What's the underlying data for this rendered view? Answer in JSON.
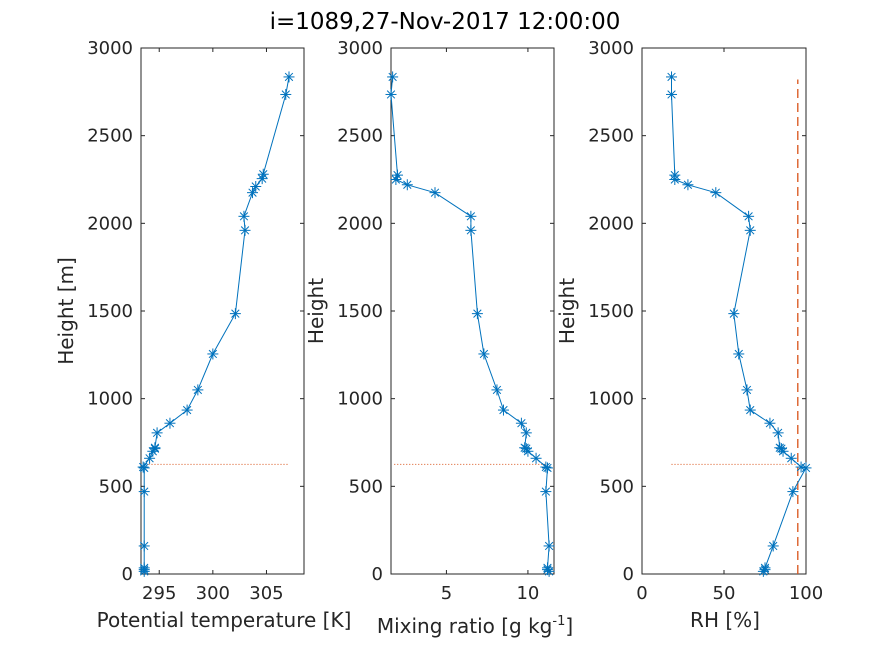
{
  "title": "i=1089,27-Nov-2017 12:00:00",
  "colors": {
    "series": "#0072bd",
    "reference": "#d95319",
    "text": "#262626"
  },
  "chart_data": [
    {
      "type": "line",
      "xlabel": "Potential temperature [K]",
      "ylabel": "Height [m]",
      "xlim": [
        293.3,
        308.5
      ],
      "ylim": [
        0,
        3000
      ],
      "xticks": [
        295,
        300,
        305
      ],
      "yticks": [
        0,
        500,
        1000,
        1500,
        2000,
        2500,
        3000
      ],
      "xtick_labels": [
        "295",
        "300",
        "305"
      ],
      "ytick_labels": [
        "0",
        "500",
        "1000",
        "1500",
        "2000",
        "2500",
        "3000"
      ],
      "marker": "asterisk",
      "grid": false,
      "series": [
        {
          "x": [
            293.6,
            293.6,
            293.6,
            293.6,
            293.6,
            293.6,
            293.5,
            294.1,
            294.4,
            294.6,
            294.6,
            294.8,
            296.0,
            297.6,
            298.6,
            300.0,
            302.1,
            303.0,
            302.9,
            303.7,
            304.0,
            304.6,
            304.7,
            306.8,
            307.1
          ],
          "y": [
            15,
            25,
            35,
            160,
            470,
            605,
            610,
            660,
            700,
            715,
            720,
            805,
            860,
            935,
            1050,
            1255,
            1485,
            1960,
            2040,
            2175,
            2210,
            2255,
            2280,
            2735,
            2835
          ]
        }
      ],
      "reference_line": {
        "style": "dotted",
        "orientation": "horizontal",
        "y": 625,
        "x_range": [
          294.0,
          307.0
        ]
      }
    },
    {
      "type": "line",
      "xlabel": "Mixing ratio [g kg",
      "xlabel_sup": "-1",
      "xlabel_tail": "]",
      "ylabel": "Height",
      "xlim": [
        1.6,
        11.6
      ],
      "ylim": [
        0,
        3000
      ],
      "xticks": [
        5,
        10
      ],
      "yticks": [
        0,
        500,
        1000,
        1500,
        2000,
        2500,
        3000
      ],
      "xtick_labels": [
        "5",
        "10"
      ],
      "ytick_labels": [
        "0",
        "500",
        "1000",
        "1500",
        "2000",
        "2500",
        "3000"
      ],
      "marker": "asterisk",
      "grid": false,
      "series": [
        {
          "x": [
            11.3,
            11.2,
            11.2,
            11.3,
            11.1,
            11.2,
            11.1,
            10.5,
            10.0,
            9.9,
            9.8,
            9.9,
            9.6,
            8.5,
            8.1,
            7.3,
            6.9,
            6.5,
            6.5,
            4.3,
            2.6,
            1.9,
            2.0,
            1.6,
            1.7
          ],
          "y": [
            15,
            25,
            35,
            160,
            470,
            605,
            610,
            660,
            700,
            715,
            720,
            805,
            860,
            935,
            1050,
            1255,
            1485,
            1960,
            2040,
            2175,
            2220,
            2250,
            2275,
            2735,
            2835
          ]
        }
      ],
      "reference_line": {
        "style": "dotted",
        "orientation": "horizontal",
        "y": 625,
        "x_range": [
          1.8,
          11.2
        ]
      }
    },
    {
      "type": "line",
      "xlabel": "RH [%]",
      "ylabel": "Height",
      "xlim": [
        0,
        100
      ],
      "ylim": [
        0,
        3000
      ],
      "xticks": [
        0,
        50,
        100
      ],
      "yticks": [
        0,
        500,
        1000,
        1500,
        2000,
        2500,
        3000
      ],
      "xtick_labels": [
        "0",
        "50",
        "100"
      ],
      "ytick_labels": [
        "0",
        "500",
        "1000",
        "1500",
        "2000",
        "2500",
        "3000"
      ],
      "marker": "asterisk",
      "grid": false,
      "series": [
        {
          "x": [
            74,
            75,
            75,
            80,
            92,
            100,
            97,
            91,
            86,
            85,
            84,
            83,
            78,
            66,
            64,
            59,
            56,
            66,
            65,
            45,
            28,
            20,
            20,
            18,
            18
          ],
          "y": [
            15,
            25,
            35,
            160,
            470,
            605,
            610,
            660,
            700,
            715,
            720,
            805,
            860,
            935,
            1050,
            1255,
            1485,
            1960,
            2040,
            2175,
            2220,
            2250,
            2275,
            2735,
            2835
          ]
        }
      ],
      "reference_line": {
        "style": "dotted",
        "orientation": "horizontal",
        "y": 625,
        "x_range": [
          18,
          100
        ]
      },
      "threshold_line": {
        "style": "dashed",
        "orientation": "vertical",
        "x": 95,
        "y_range": [
          0,
          2820
        ]
      }
    }
  ]
}
